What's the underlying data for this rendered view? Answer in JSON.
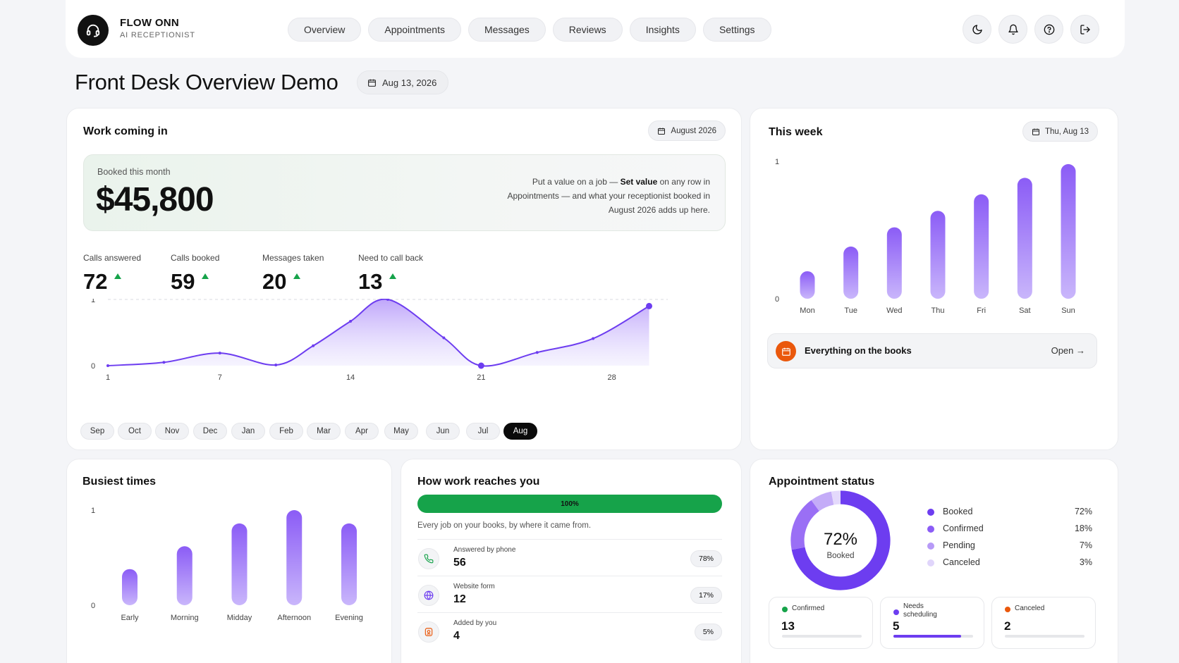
{
  "brand": {
    "name": "FLOW ONN",
    "subtitle": "AI RECEPTIONIST"
  },
  "nav": {
    "tabs": [
      {
        "label": "Overview",
        "active": true
      },
      {
        "label": "Appointments",
        "active": false
      },
      {
        "label": "Messages",
        "active": false
      },
      {
        "label": "Reviews",
        "active": false
      },
      {
        "label": "Insights",
        "active": false
      },
      {
        "label": "Settings",
        "active": false
      }
    ],
    "icons": [
      "moon-icon",
      "bell-icon",
      "help-icon",
      "logout-icon"
    ]
  },
  "page": {
    "title": "Front Desk Overview Demo",
    "date": "Aug 13, 2026"
  },
  "work": {
    "title": "Work coming in",
    "period": "August 2026",
    "booked_label": "Booked this month",
    "booked_value": "$45,800",
    "note_pre": "Put a value on a job — ",
    "note_bold": "Set value",
    "note_post": " on any row in Appointments — and what your receptionist booked in August 2026 adds up here.",
    "stats": [
      {
        "label": "Calls answered",
        "value": "72"
      },
      {
        "label": "Calls booked",
        "value": "59"
      },
      {
        "label": "Messages taken",
        "value": "20"
      },
      {
        "label": "Need to call back",
        "value": "13"
      }
    ],
    "months": [
      {
        "label": "Sep",
        "active": false
      },
      {
        "label": "Oct",
        "active": false
      },
      {
        "label": "Nov",
        "active": false
      },
      {
        "label": "Dec",
        "active": false
      },
      {
        "label": "Jan",
        "active": false
      },
      {
        "label": "Feb",
        "active": false
      },
      {
        "label": "Mar",
        "active": false
      },
      {
        "label": "Apr",
        "active": false
      },
      {
        "label": "May",
        "active": false
      },
      {
        "label": "Jun",
        "active": false
      },
      {
        "label": "Jul",
        "active": false
      },
      {
        "label": "Aug",
        "active": true
      }
    ],
    "chart_data": {
      "type": "area",
      "x": [
        1,
        4,
        7,
        10,
        12,
        14,
        16,
        19,
        21,
        24,
        27,
        30
      ],
      "values": [
        0,
        0.05,
        0.19,
        0.01,
        0.3,
        0.67,
        1.0,
        0.42,
        0.0,
        0.2,
        0.41,
        0.9
      ],
      "xticks": [
        "1",
        "7",
        "14",
        "21",
        "28"
      ],
      "ylim": [
        0,
        1
      ],
      "yticks": [
        "0",
        "1"
      ],
      "highlight_points": [
        21,
        30
      ],
      "color": "#6d3df0"
    }
  },
  "week": {
    "title": "This week",
    "date": "Thu, Aug 13",
    "chart_data": {
      "type": "bar",
      "categories": [
        "Mon",
        "Tue",
        "Wed",
        "Thu",
        "Fri",
        "Sat",
        "Sun"
      ],
      "values": [
        0.2,
        0.38,
        0.52,
        0.64,
        0.76,
        0.88,
        0.98
      ],
      "ylim": [
        0,
        1
      ],
      "yticks": [
        "0",
        "1"
      ]
    },
    "books_label": "Everything on the books",
    "books_open": "Open →"
  },
  "busiest": {
    "title": "Busiest times",
    "chart_data": {
      "type": "bar",
      "categories": [
        "Early",
        "Morning",
        "Midday",
        "Afternoon",
        "Evening"
      ],
      "values": [
        0.38,
        0.62,
        0.86,
        1.0,
        0.86
      ],
      "ylim": [
        0,
        1
      ],
      "yticks": [
        "0",
        "1"
      ]
    }
  },
  "reach": {
    "title": "How work reaches you",
    "progress_label": "100%",
    "progress": 1.0,
    "subtitle": "Every job on your books, by where it came from.",
    "rows": [
      {
        "label": "Answered by phone",
        "value": "56",
        "pct": "78%",
        "icon": "phone-icon",
        "color": "#16a34a"
      },
      {
        "label": "Website form",
        "value": "12",
        "pct": "17%",
        "icon": "globe-icon",
        "color": "#6d3df0"
      },
      {
        "label": "Added by you",
        "value": "4",
        "pct": "5%",
        "icon": "user-icon",
        "color": "#ea580c"
      }
    ]
  },
  "status": {
    "title": "Appointment status",
    "center_value": "72%",
    "center_label": "Booked",
    "chart_data": {
      "type": "pie",
      "categories": [
        "Booked",
        "Confirmed",
        "Pending",
        "Canceled"
      ],
      "values": [
        72,
        18,
        7,
        3
      ],
      "colors": [
        "#6d3df0",
        "#9a6ff5",
        "#c4acf8",
        "#e4d9fc"
      ]
    },
    "legend": [
      {
        "label": "Booked",
        "pct": "72%",
        "color": "#6d3df0"
      },
      {
        "label": "Confirmed",
        "pct": "18%",
        "color": "#8b5cf6"
      },
      {
        "label": "Pending",
        "pct": "7%",
        "color": "#b79af7"
      },
      {
        "label": "Canceled",
        "pct": "3%",
        "color": "#e0d5fb"
      }
    ],
    "minis": [
      {
        "label": "Confirmed",
        "value": "13",
        "color": "#16a34a",
        "fill": 0
      },
      {
        "label": "Needs scheduling",
        "value": "5",
        "color": "#6d3df0",
        "fill": 0.85
      },
      {
        "label": "Canceled",
        "value": "2",
        "color": "#ea580c",
        "fill": 0
      }
    ]
  }
}
